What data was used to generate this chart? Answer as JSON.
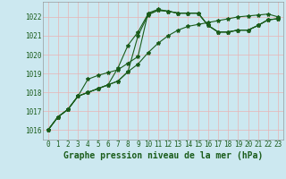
{
  "bg_color": "#cce8f0",
  "grid_color": "#e8b4b4",
  "line_color": "#1a5c1a",
  "title": "Graphe pression niveau de la mer (hPa)",
  "xlim": [
    -0.5,
    23.5
  ],
  "ylim": [
    1015.5,
    1022.8
  ],
  "yticks": [
    1016,
    1017,
    1018,
    1019,
    1020,
    1021,
    1022
  ],
  "xticks": [
    0,
    1,
    2,
    3,
    4,
    5,
    6,
    7,
    8,
    9,
    10,
    11,
    12,
    13,
    14,
    15,
    16,
    17,
    18,
    19,
    20,
    21,
    22,
    23
  ],
  "series": [
    [
      1016.0,
      1016.7,
      1017.1,
      1017.8,
      1018.0,
      1018.2,
      1018.4,
      1018.6,
      1019.1,
      1019.5,
      1020.1,
      1020.6,
      1021.0,
      1021.3,
      1021.5,
      1021.6,
      1021.7,
      1021.8,
      1021.9,
      1022.0,
      1022.05,
      1022.1,
      1022.15,
      1022.0
    ],
    [
      1016.0,
      1016.7,
      1017.1,
      1017.8,
      1018.0,
      1018.2,
      1018.4,
      1019.3,
      1020.5,
      1021.2,
      1022.15,
      1022.35,
      1022.3,
      1022.2,
      1022.2,
      1022.2,
      1021.55,
      1021.2,
      1021.2,
      1021.3,
      1021.3,
      1021.55,
      1021.85,
      1021.9
    ],
    [
      1016.0,
      1016.7,
      1017.1,
      1017.8,
      1018.7,
      1018.9,
      1019.05,
      1019.2,
      1019.55,
      1019.9,
      1022.2,
      1022.4,
      1022.3,
      1022.2,
      1022.2,
      1022.2,
      1021.55,
      1021.2,
      1021.2,
      1021.3,
      1021.3,
      1021.55,
      1021.85,
      1021.9
    ],
    [
      1016.0,
      1016.7,
      1017.1,
      1017.8,
      1018.0,
      1018.2,
      1018.4,
      1018.6,
      1019.1,
      1021.0,
      1022.1,
      1022.35,
      1022.3,
      1022.2,
      1022.2,
      1022.2,
      1021.55,
      1021.2,
      1021.2,
      1021.3,
      1021.3,
      1021.55,
      1021.85,
      1021.9
    ]
  ],
  "marker": "*",
  "markersize": 3,
  "linewidth": 0.8,
  "title_fontsize": 7,
  "tick_fontsize": 5.5
}
